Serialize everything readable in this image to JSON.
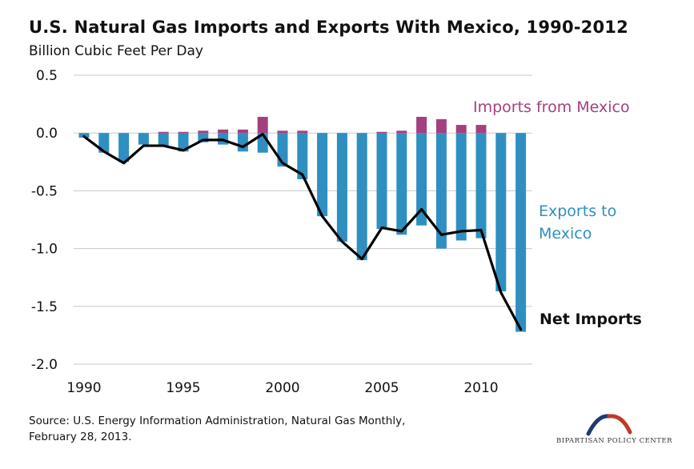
{
  "chart_data": {
    "type": "bar",
    "title": "U.S. Natural Gas Imports and Exports With Mexico, 1990-2012",
    "subtitle": "Billion Cubic Feet Per Day",
    "x": [
      1990,
      1991,
      1992,
      1993,
      1994,
      1995,
      1996,
      1997,
      1998,
      1999,
      2000,
      2001,
      2002,
      2003,
      2004,
      2005,
      2006,
      2007,
      2008,
      2009,
      2010,
      2011,
      2012
    ],
    "xticks": [
      "1990",
      "1995",
      "2000",
      "2005",
      "2010"
    ],
    "yticks": [
      "0.5",
      "0.0",
      "-0.5",
      "-1.0",
      "-1.5",
      "-2.0"
    ],
    "ylim": [
      -2.0,
      0.5
    ],
    "grid": true,
    "series": [
      {
        "name": "Imports from Mexico",
        "color": "#a4407f",
        "values": [
          0,
          0,
          0,
          0,
          0.01,
          0.01,
          0.02,
          0.03,
          0.03,
          0.14,
          0.02,
          0.02,
          0,
          0,
          0,
          0.01,
          0.02,
          0.14,
          0.12,
          0.07,
          0.07,
          0,
          0
        ]
      },
      {
        "name": "Exports to Mexico",
        "color": "#2f8fc0",
        "values": [
          -0.04,
          -0.17,
          -0.25,
          -0.1,
          -0.11,
          -0.16,
          -0.08,
          -0.1,
          -0.16,
          -0.17,
          -0.29,
          -0.4,
          -0.72,
          -0.94,
          -1.1,
          -0.83,
          -0.88,
          -0.8,
          -1.0,
          -0.93,
          -0.91,
          -1.37,
          -1.72
        ]
      },
      {
        "name": "Net Imports",
        "type": "line",
        "color": "#000000",
        "values": [
          -0.03,
          -0.16,
          -0.26,
          -0.11,
          -0.11,
          -0.15,
          -0.06,
          -0.06,
          -0.12,
          -0.01,
          -0.26,
          -0.36,
          -0.72,
          -0.94,
          -1.09,
          -0.82,
          -0.85,
          -0.66,
          -0.88,
          -0.85,
          -0.84,
          -1.38,
          -1.7
        ]
      }
    ],
    "annotations": {
      "imports": "Imports from Mexico",
      "exports_line1": "Exports to",
      "exports_line2": "Mexico",
      "net": "Net Imports"
    }
  },
  "source": {
    "line1": "Source: U.S. Energy Information Administration, Natural Gas Monthly,",
    "line2": "February 28, 2013."
  },
  "logo": {
    "text": "BIPARTISAN POLICY CENTER",
    "colors": [
      "#1f3a6e",
      "#c0392b"
    ]
  }
}
